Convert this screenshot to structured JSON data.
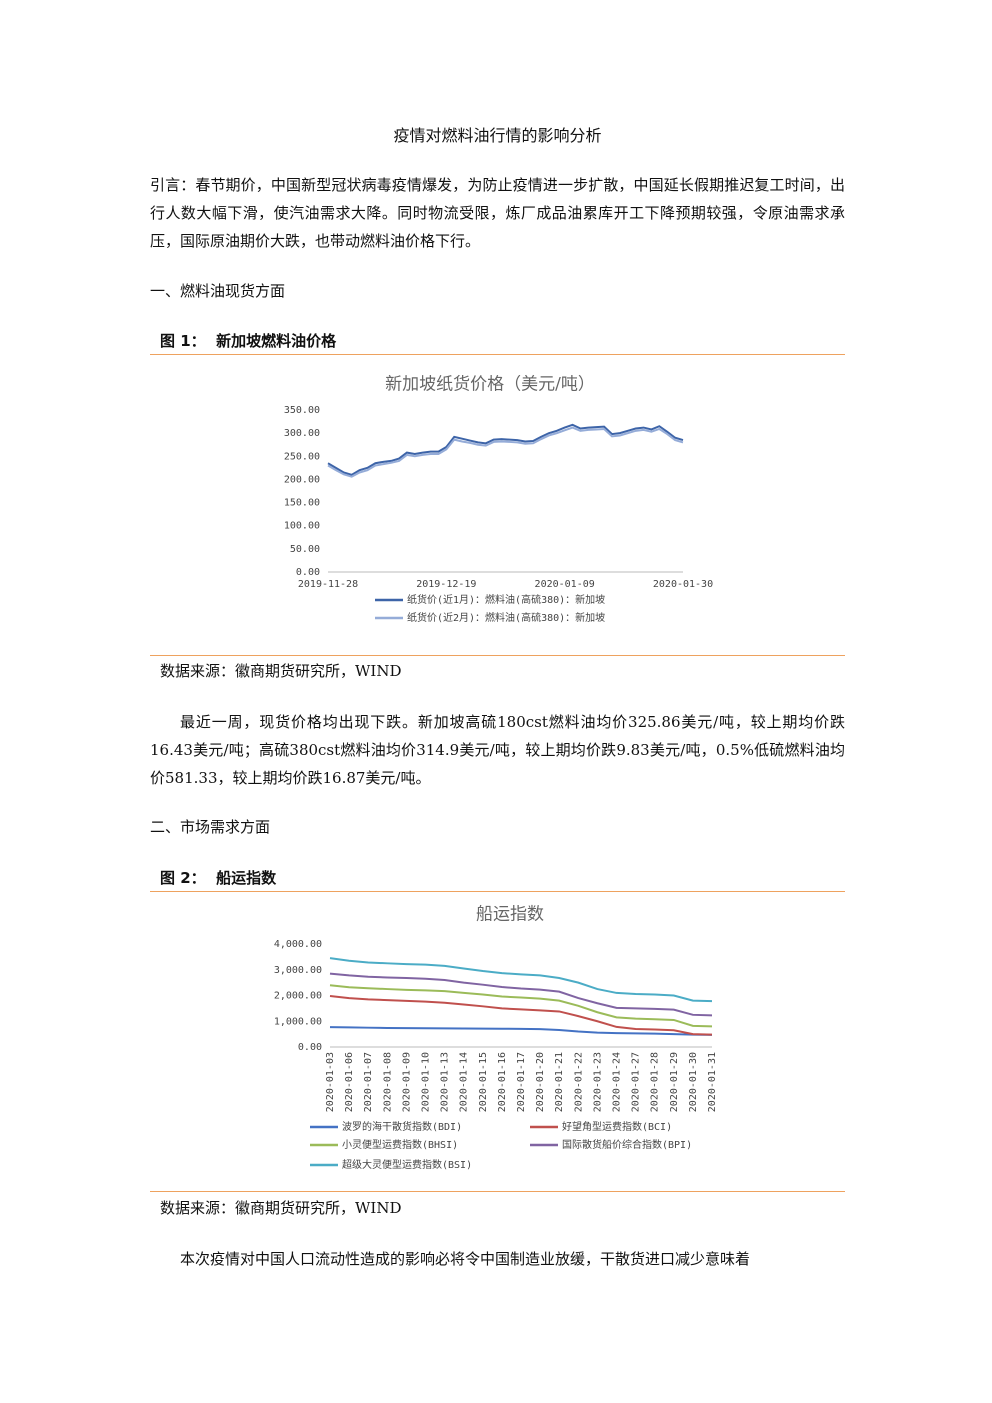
{
  "title": "疫情对燃料油行情的影响分析",
  "intro": "引言：春节期价，中国新型冠状病毒疫情爆发，为防止疫情进一步扩散，中国延长假期推迟复工时间，出行人数大幅下滑，使汽油需求大降。同时物流受限，炼厂成品油累库开工下降预期较强，令原油需求承压，国际原油期价大跌，也带动燃料油价格下行。",
  "sections": [
    {
      "heading": "一、燃料油现货方面",
      "figure_label": "图 1：",
      "figure_title": "新加坡燃料油价格",
      "source": "数据来源：徽商期货研究所，WIND",
      "paragraph": "最近一周，现货价格均出现下跌。新加坡高硫180cst燃料油均价325.86美元/吨，较上期均价跌16.43美元/吨；高硫380cst燃料油均价314.9美元/吨，较上期均价跌9.83美元/吨，0.5%低硫燃料油均价581.33，较上期均价跌16.87美元/吨。"
    },
    {
      "heading": "二、市场需求方面",
      "figure_label": "图 2：",
      "figure_title": "船运指数",
      "source": "数据来源：徽商期货研究所，WIND",
      "paragraph": "本次疫情对中国人口流动性造成的影响必将令中国制造业放缓，干散货进口减少意味着"
    }
  ],
  "chart_data": [
    {
      "type": "line",
      "title": "新加坡纸货价格（美元/吨）",
      "legend": "bottom",
      "grid": false,
      "categories": [
        "2019-11-28",
        null,
        null,
        null,
        null,
        null,
        null,
        null,
        null,
        null,
        null,
        null,
        null,
        null,
        null,
        "2019-12-19",
        null,
        null,
        null,
        null,
        null,
        null,
        null,
        null,
        null,
        null,
        null,
        null,
        null,
        null,
        "2020-01-09",
        null,
        null,
        null,
        null,
        null,
        null,
        null,
        null,
        null,
        null,
        null,
        null,
        null,
        null,
        "2020-01-30"
      ],
      "ylim": [
        0,
        350
      ],
      "yticks": [
        {
          "value": 0,
          "label": "0.00"
        },
        {
          "value": 50,
          "label": "50.00"
        },
        {
          "value": 100,
          "label": "100.00"
        },
        {
          "value": 150,
          "label": "150.00"
        },
        {
          "value": 200,
          "label": "200.00"
        },
        {
          "value": 250,
          "label": "250.00"
        },
        {
          "value": 300,
          "label": "300.00"
        },
        {
          "value": 350,
          "label": "350.00"
        }
      ],
      "series": [
        {
          "name": "纸货价(近1月)：燃料油(高硫380)：新加坡",
          "color": "#3d64a8",
          "values": [
            235,
            225,
            215,
            210,
            220,
            225,
            235,
            238,
            240,
            245,
            258,
            255,
            258,
            260,
            260,
            270,
            292,
            288,
            284,
            280,
            278,
            286,
            287,
            286,
            285,
            282,
            283,
            292,
            300,
            305,
            312,
            318,
            310,
            312,
            313,
            314,
            298,
            300,
            305,
            310,
            312,
            308,
            315,
            303,
            290,
            285
          ]
        },
        {
          "name": "纸货价(近2月)：燃料油(高硫380)：新加坡",
          "color": "#95acd8",
          "values": [
            230,
            220,
            211,
            206,
            215,
            220,
            230,
            233,
            236,
            240,
            253,
            250,
            253,
            255,
            255,
            265,
            286,
            282,
            279,
            275,
            273,
            281,
            282,
            281,
            280,
            277,
            278,
            287,
            295,
            300,
            306,
            312,
            305,
            307,
            308,
            309,
            293,
            295,
            300,
            305,
            307,
            303,
            309,
            298,
            285,
            280
          ]
        }
      ]
    },
    {
      "type": "line",
      "title": "船运指数",
      "legend": "bottom",
      "grid": false,
      "xtick_rotation": -90,
      "categories": [
        "2020-01-03",
        "2020-01-06",
        "2020-01-07",
        "2020-01-08",
        "2020-01-09",
        "2020-01-10",
        "2020-01-13",
        "2020-01-14",
        "2020-01-15",
        "2020-01-16",
        "2020-01-17",
        "2020-01-20",
        "2020-01-21",
        "2020-01-22",
        "2020-01-23",
        "2020-01-24",
        "2020-01-27",
        "2020-01-28",
        "2020-01-29",
        "2020-01-30",
        "2020-01-31"
      ],
      "ylim": [
        0,
        4000
      ],
      "yticks": [
        {
          "value": 0,
          "label": "0.00"
        },
        {
          "value": 1000,
          "label": "1,000.00"
        },
        {
          "value": 2000,
          "label": "2,000.00"
        },
        {
          "value": 3000,
          "label": "3,000.00"
        },
        {
          "value": 4000,
          "label": "4,000.00"
        }
      ],
      "series": [
        {
          "name": "波罗的海干散货指数(BDI)",
          "color": "#4472c4",
          "values": [
            771,
            760,
            750,
            740,
            735,
            730,
            725,
            720,
            715,
            710,
            705,
            695,
            660,
            600,
            560,
            540,
            530,
            520,
            500,
            480,
            470
          ]
        },
        {
          "name": "好望角型运费指数(BCI)",
          "color": "#c0504d",
          "values": [
            1980,
            1900,
            1850,
            1820,
            1790,
            1760,
            1720,
            1650,
            1580,
            1500,
            1460,
            1420,
            1380,
            1200,
            1000,
            780,
            700,
            680,
            650,
            500,
            480
          ]
        },
        {
          "name": "小灵便型运费指数(BHSI)",
          "color": "#9bbb59",
          "values": [
            2400,
            2320,
            2280,
            2250,
            2220,
            2200,
            2170,
            2100,
            2040,
            1960,
            1920,
            1880,
            1800,
            1600,
            1350,
            1150,
            1100,
            1080,
            1050,
            820,
            800
          ]
        },
        {
          "name": "国际散货船价综合指数(BPI)",
          "color": "#8064a2",
          "values": [
            2850,
            2780,
            2730,
            2700,
            2680,
            2650,
            2600,
            2500,
            2420,
            2330,
            2270,
            2230,
            2150,
            1900,
            1700,
            1520,
            1500,
            1480,
            1450,
            1250,
            1230
          ]
        },
        {
          "name": "超级大灵便型运费指数(BSI)",
          "color": "#4bacc6",
          "values": [
            3450,
            3350,
            3280,
            3250,
            3220,
            3200,
            3150,
            3050,
            2950,
            2870,
            2820,
            2780,
            2680,
            2500,
            2250,
            2100,
            2060,
            2040,
            2000,
            1800,
            1780
          ]
        }
      ]
    }
  ]
}
